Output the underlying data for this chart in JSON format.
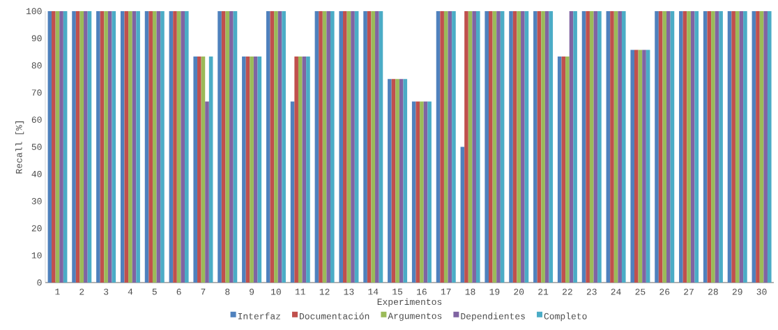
{
  "chart_data": {
    "type": "bar",
    "xlabel": "Experimentos",
    "ylabel": "Recall [%]",
    "categories": [
      "1",
      "2",
      "3",
      "4",
      "5",
      "6",
      "7",
      "8",
      "9",
      "10",
      "11",
      "12",
      "13",
      "14",
      "15",
      "16",
      "17",
      "18",
      "19",
      "20",
      "21",
      "22",
      "23",
      "24",
      "25",
      "26",
      "27",
      "28",
      "29",
      "30"
    ],
    "series": [
      {
        "name": "Interfaz",
        "color": "#4f81bd",
        "values": [
          100,
          100,
          100,
          100,
          100,
          100,
          83.3,
          100,
          83.3,
          100,
          66.7,
          100,
          100,
          100,
          75,
          66.7,
          100,
          50,
          100,
          100,
          100,
          83.3,
          100,
          100,
          85.7,
          100,
          100,
          100,
          100,
          100
        ]
      },
      {
        "name": "Documentación",
        "color": "#c0504d",
        "values": [
          100,
          100,
          100,
          100,
          100,
          100,
          83.3,
          100,
          83.3,
          100,
          83.3,
          100,
          100,
          100,
          75,
          66.7,
          100,
          100,
          100,
          100,
          100,
          83.3,
          100,
          100,
          85.7,
          100,
          100,
          100,
          100,
          100
        ]
      },
      {
        "name": "Argumentos",
        "color": "#9bbb59",
        "values": [
          100,
          100,
          100,
          100,
          100,
          100,
          83.3,
          100,
          83.3,
          100,
          83.3,
          100,
          100,
          100,
          75,
          66.7,
          100,
          100,
          100,
          100,
          100,
          83.3,
          100,
          100,
          85.7,
          100,
          100,
          100,
          100,
          100
        ]
      },
      {
        "name": "Dependientes",
        "color": "#8064a2",
        "values": [
          100,
          100,
          100,
          100,
          100,
          100,
          66.7,
          100,
          83.3,
          100,
          83.3,
          100,
          100,
          100,
          75,
          66.7,
          100,
          100,
          100,
          100,
          100,
          100,
          100,
          100,
          85.7,
          100,
          100,
          100,
          100,
          100
        ]
      },
      {
        "name": "Completo",
        "color": "#4bacc6",
        "values": [
          100,
          100,
          100,
          100,
          100,
          100,
          83.3,
          100,
          83.3,
          100,
          83.3,
          100,
          100,
          100,
          75,
          66.7,
          100,
          100,
          100,
          100,
          100,
          100,
          100,
          100,
          85.7,
          100,
          100,
          100,
          100,
          100
        ]
      }
    ],
    "ylim": [
      0,
      100
    ],
    "yticks": [
      0,
      10,
      20,
      30,
      40,
      50,
      60,
      70,
      80,
      90,
      100
    ],
    "grid": false,
    "legend": "bottom"
  }
}
